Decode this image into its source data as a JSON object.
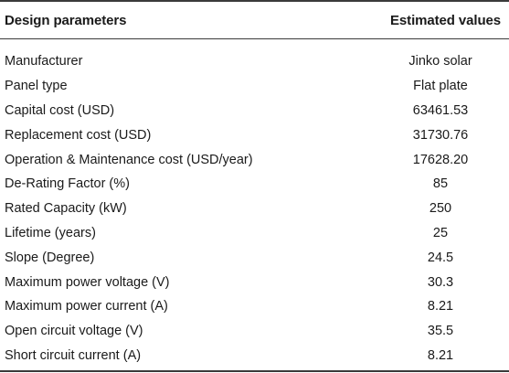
{
  "table": {
    "headers": {
      "param": "Design parameters",
      "value": "Estimated values"
    },
    "rows": [
      {
        "param": "Manufacturer",
        "value": "Jinko solar"
      },
      {
        "param": "Panel type",
        "value": "Flat plate"
      },
      {
        "param": "Capital cost (USD)",
        "value": "63461.53"
      },
      {
        "param": "Replacement cost (USD)",
        "value": "31730.76"
      },
      {
        "param": "Operation & Maintenance cost (USD/year)",
        "value": "17628.20"
      },
      {
        "param": "De-Rating Factor (%)",
        "value": "85"
      },
      {
        "param": "Rated Capacity (kW)",
        "value": "250"
      },
      {
        "param": "Lifetime (years)",
        "value": "25"
      },
      {
        "param": "Slope (Degree)",
        "value": "24.5"
      },
      {
        "param": "Maximum power voltage (V)",
        "value": "30.3"
      },
      {
        "param": "Maximum power current (A)",
        "value": "8.21"
      },
      {
        "param": "Open circuit voltage (V)",
        "value": "35.5"
      },
      {
        "param": "Short circuit current (A)",
        "value": "8.21"
      }
    ]
  }
}
